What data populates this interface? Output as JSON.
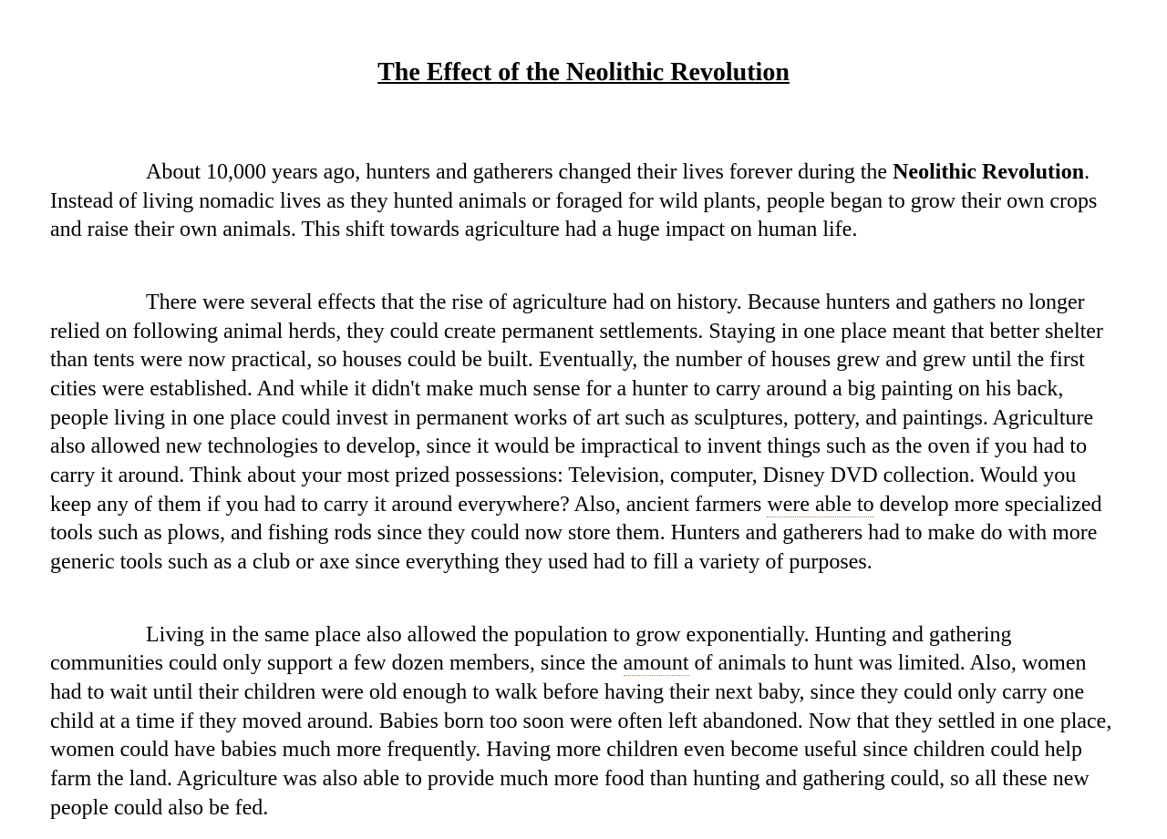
{
  "title": "The Effect of the Neolithic Revolution",
  "styles": {
    "background_color": "#ffffff",
    "text_color": "#000000",
    "font_family": "Times New Roman",
    "title_fontsize": 28,
    "body_fontsize": 24,
    "dotted_underline_color": "#a08060"
  },
  "paragraphs": {
    "p1": {
      "head": "About 10,000 years ago, hunters and gatherers changed their lives forever during the ",
      "bold": "Neolithic Revolution",
      "tail": ".  Instead of living nomadic lives as they hunted animals or foraged for wild plants, people began to grow their own crops and raise their own animals.  This shift towards agriculture had a huge impact on human life."
    },
    "p2": {
      "part1": "There were several effects that the rise of agriculture had on history.  Because hunters and gathers no longer relied on following animal herds, they could create permanent settlements.  Staying in one place meant that better shelter than tents were now practical, so houses could be built.  Eventually, the number of houses grew and grew until the first cities were established.  And while it didn't make much sense for a hunter to carry around a big painting on his back, people living in one place could invest in permanent works of art such as sculptures, pottery, and paintings.  Agriculture also allowed new technologies to develop, since it would be impractical to invent things such as the oven if you had to carry it around.  Think about your most prized possessions: Television, computer, Disney DVD collection.  Would you keep any of them if you had to carry it around everywhere?  Also, ancient farmers ",
      "underline1": "were able to",
      "part2": " develop more specialized tools such as plows, and fishing rods since they could now store them.  Hunters and gatherers had to make do with more generic tools such as a club or axe since everything they used had to fill a variety of purposes."
    },
    "p3": {
      "part1": "Living in the same place also allowed the population to grow exponentially.  Hunting and gathering communities could only support a few dozen members, since the ",
      "underline1": "amount",
      "part2": " of animals to hunt was limited.  Also, women had to wait until their children were old enough to walk before having their next baby, since they could only carry one child at a time if they moved around.  Babies born too soon were often left abandoned.  Now that they settled in one place, women could have babies much more frequently.  Having more children even become useful since children could help farm the land.  Agriculture was also able to provide much more food than hunting and gathering could, so all these new people could also be fed."
    }
  }
}
